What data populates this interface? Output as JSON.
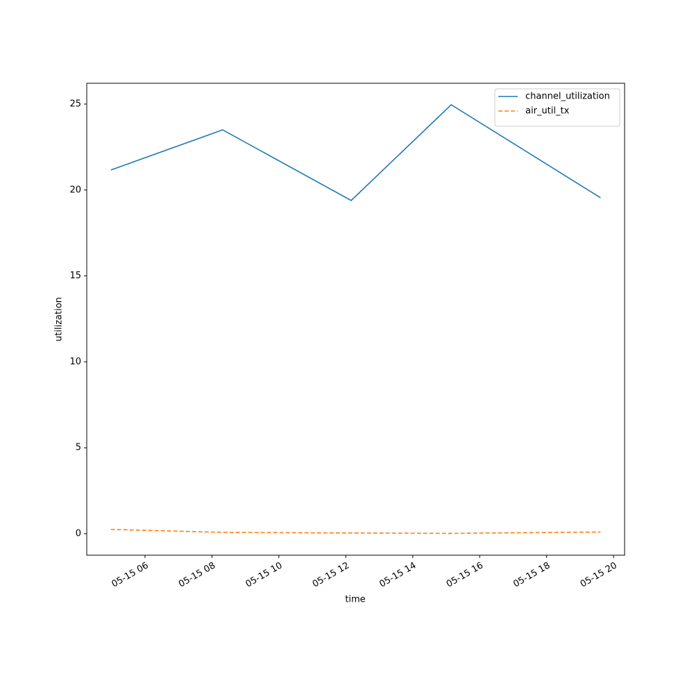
{
  "chart_data": {
    "type": "line",
    "x_label": "time",
    "y_label": "utilization",
    "x": [
      4.98,
      8.32,
      12.16,
      15.15,
      19.61
    ],
    "series": [
      {
        "name": "channel_utilization",
        "color": "#1f77b4",
        "dash": "solid",
        "values": [
          21.16,
          23.5,
          19.39,
          24.96,
          19.55
        ]
      },
      {
        "name": "air_util_tx",
        "color": "#ff7f0e",
        "dash": "dashed",
        "values": [
          0.25,
          0.08,
          0.04,
          0.02,
          0.1
        ]
      }
    ],
    "xlim": [
      4.26,
      20.33
    ],
    "xticks": [
      {
        "value": 6,
        "label": "05-15 06"
      },
      {
        "value": 8,
        "label": "05-15 08"
      },
      {
        "value": 10,
        "label": "05-15 10"
      },
      {
        "value": 12,
        "label": "05-15 12"
      },
      {
        "value": 14,
        "label": "05-15 14"
      },
      {
        "value": 16,
        "label": "05-15 16"
      },
      {
        "value": 18,
        "label": "05-15 18"
      },
      {
        "value": 20,
        "label": "05-15 20"
      }
    ],
    "ylim": [
      -1.25,
      26.21
    ],
    "yticks": [
      0,
      5,
      10,
      15,
      20,
      25
    ],
    "grid": false,
    "legend": "upper right"
  }
}
